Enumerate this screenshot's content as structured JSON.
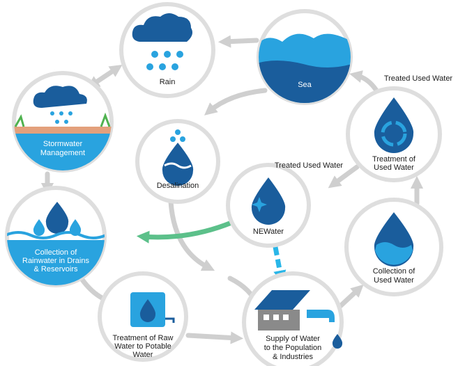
{
  "nodes": [
    {
      "label": [
        "Rain"
      ]
    },
    {
      "label": [
        "Sea"
      ]
    },
    {
      "label": [
        "Stormwater",
        "Management"
      ]
    },
    {
      "label": [
        "Desalination"
      ]
    },
    {
      "label": [
        "Treatment of",
        "Used Water"
      ]
    },
    {
      "label": [
        "NEWater"
      ]
    },
    {
      "label": [
        "Collection of",
        "Rainwater in Drains",
        "& Reservoirs"
      ]
    },
    {
      "label": [
        "Collection of",
        "Used Water"
      ]
    },
    {
      "label": [
        "Treatment of Raw",
        "Water to Potable",
        "Water"
      ]
    },
    {
      "label": [
        "Supply of Water",
        "to the Population",
        "& Industries"
      ]
    }
  ],
  "annotations": [
    "Treated Used Water",
    "Treated Used Water"
  ]
}
